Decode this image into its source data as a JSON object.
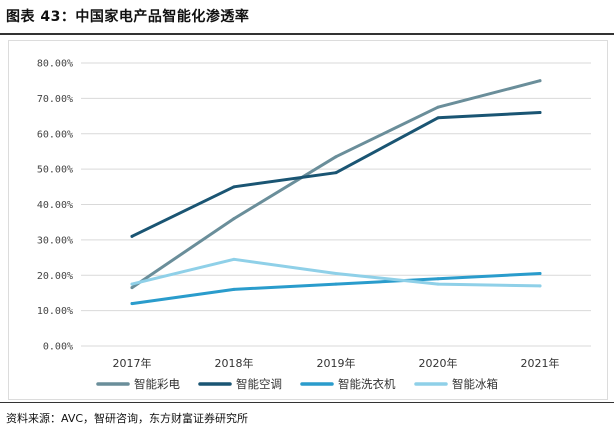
{
  "title": "图表 43：中国家电产品智能化渗透率",
  "source": "资料来源：AVC，智研咨询，东方财富证券研究所",
  "chart_data": {
    "type": "line",
    "title": "图表 43：中国家电产品智能化渗透率",
    "xlabel": "",
    "ylabel": "",
    "categories": [
      "2017年",
      "2018年",
      "2019年",
      "2020年",
      "2021年"
    ],
    "ylim": [
      0,
      80
    ],
    "yticks": [
      0,
      10,
      20,
      30,
      40,
      50,
      60,
      70,
      80
    ],
    "ytick_labels": [
      "0.00%",
      "10.00%",
      "20.00%",
      "30.00%",
      "40.00%",
      "50.00%",
      "60.00%",
      "70.00%",
      "80.00%"
    ],
    "grid": true,
    "legend_position": "bottom",
    "series": [
      {
        "name": "智能彩电",
        "color": "#6a8e9a",
        "values": [
          16.5,
          36,
          53.5,
          67.5,
          75
        ]
      },
      {
        "name": "智能空调",
        "color": "#1a5573",
        "values": [
          31,
          45,
          49,
          64.5,
          66
        ]
      },
      {
        "name": "智能洗衣机",
        "color": "#2a9ccc",
        "values": [
          12,
          16,
          17.5,
          19,
          20.5
        ]
      },
      {
        "name": "智能冰箱",
        "color": "#8fd0e8",
        "values": [
          17.5,
          24.5,
          20.5,
          17.5,
          17
        ]
      }
    ]
  }
}
